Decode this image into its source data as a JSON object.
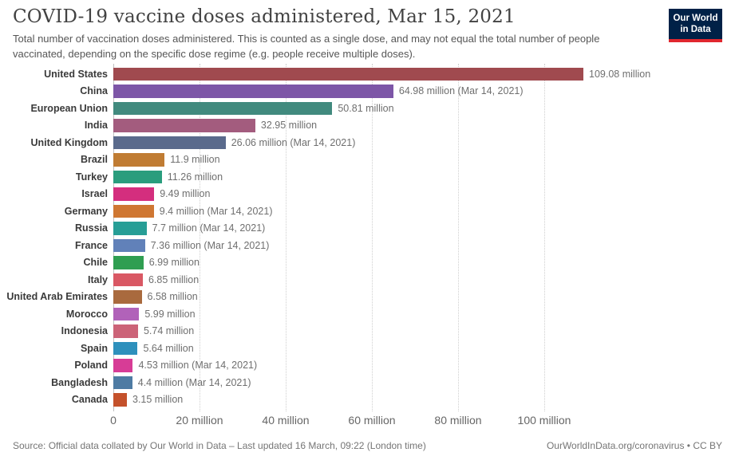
{
  "header": {
    "logo": {
      "line1": "Our World",
      "line2": "in Data",
      "bg_color": "#002147",
      "accent_color": "#e0272e"
    }
  },
  "chart_data": {
    "type": "bar",
    "orientation": "horizontal",
    "title": "COVID-19 vaccine doses administered, Mar 15, 2021",
    "subtitle": "Total number of vaccination doses administered. This is counted as a single dose, and may not equal the total number of people vaccinated, depending on the specific dose regime (e.g. people receive multiple doses).",
    "categories": [
      "United States",
      "China",
      "European Union",
      "India",
      "United Kingdom",
      "Brazil",
      "Turkey",
      "Israel",
      "Germany",
      "Russia",
      "France",
      "Chile",
      "Italy",
      "United Arab Emirates",
      "Morocco",
      "Indonesia",
      "Spain",
      "Poland",
      "Bangladesh",
      "Canada"
    ],
    "values": [
      109.08,
      64.98,
      50.81,
      32.95,
      26.06,
      11.9,
      11.26,
      9.49,
      9.4,
      7.7,
      7.36,
      6.99,
      6.85,
      6.58,
      5.99,
      5.74,
      5.64,
      4.53,
      4.4,
      3.15
    ],
    "value_labels": [
      "109.08 million",
      "64.98 million (Mar 14, 2021)",
      "50.81 million",
      "32.95 million",
      "26.06 million (Mar 14, 2021)",
      "11.9 million",
      "11.26 million",
      "9.49 million",
      "9.4 million (Mar 14, 2021)",
      "7.7 million (Mar 14, 2021)",
      "7.36 million (Mar 14, 2021)",
      "6.99 million",
      "6.85 million",
      "6.58 million",
      "5.99 million",
      "5.74 million",
      "5.64 million",
      "4.53 million (Mar 14, 2021)",
      "4.4 million (Mar 14, 2021)",
      "3.15 million"
    ],
    "bar_colors": [
      "#a04a4f",
      "#7d56a7",
      "#418a7e",
      "#a35c7e",
      "#5a6a8c",
      "#c07c33",
      "#2a9d7d",
      "#d42e7e",
      "#cf7732",
      "#279e96",
      "#6181b9",
      "#2f9e51",
      "#d95864",
      "#a96a3e",
      "#b162b9",
      "#cc6378",
      "#2e90bc",
      "#d73c96",
      "#4e7ba3",
      "#c4512b"
    ],
    "x_ticks": [
      "0",
      "20 million",
      "40 million",
      "60 million",
      "80 million",
      "100 million"
    ],
    "x_tick_values": [
      0,
      20,
      40,
      60,
      80,
      100
    ],
    "xlim": [
      0,
      115
    ],
    "unit": "million doses",
    "grid": "vertical-dotted",
    "legend": "none"
  },
  "footer": {
    "source": "Source: Official data collated by Our World in Data – Last updated 16 March, 09:22 (London time)",
    "link": "OurWorldInData.org/coronavirus • CC BY"
  }
}
